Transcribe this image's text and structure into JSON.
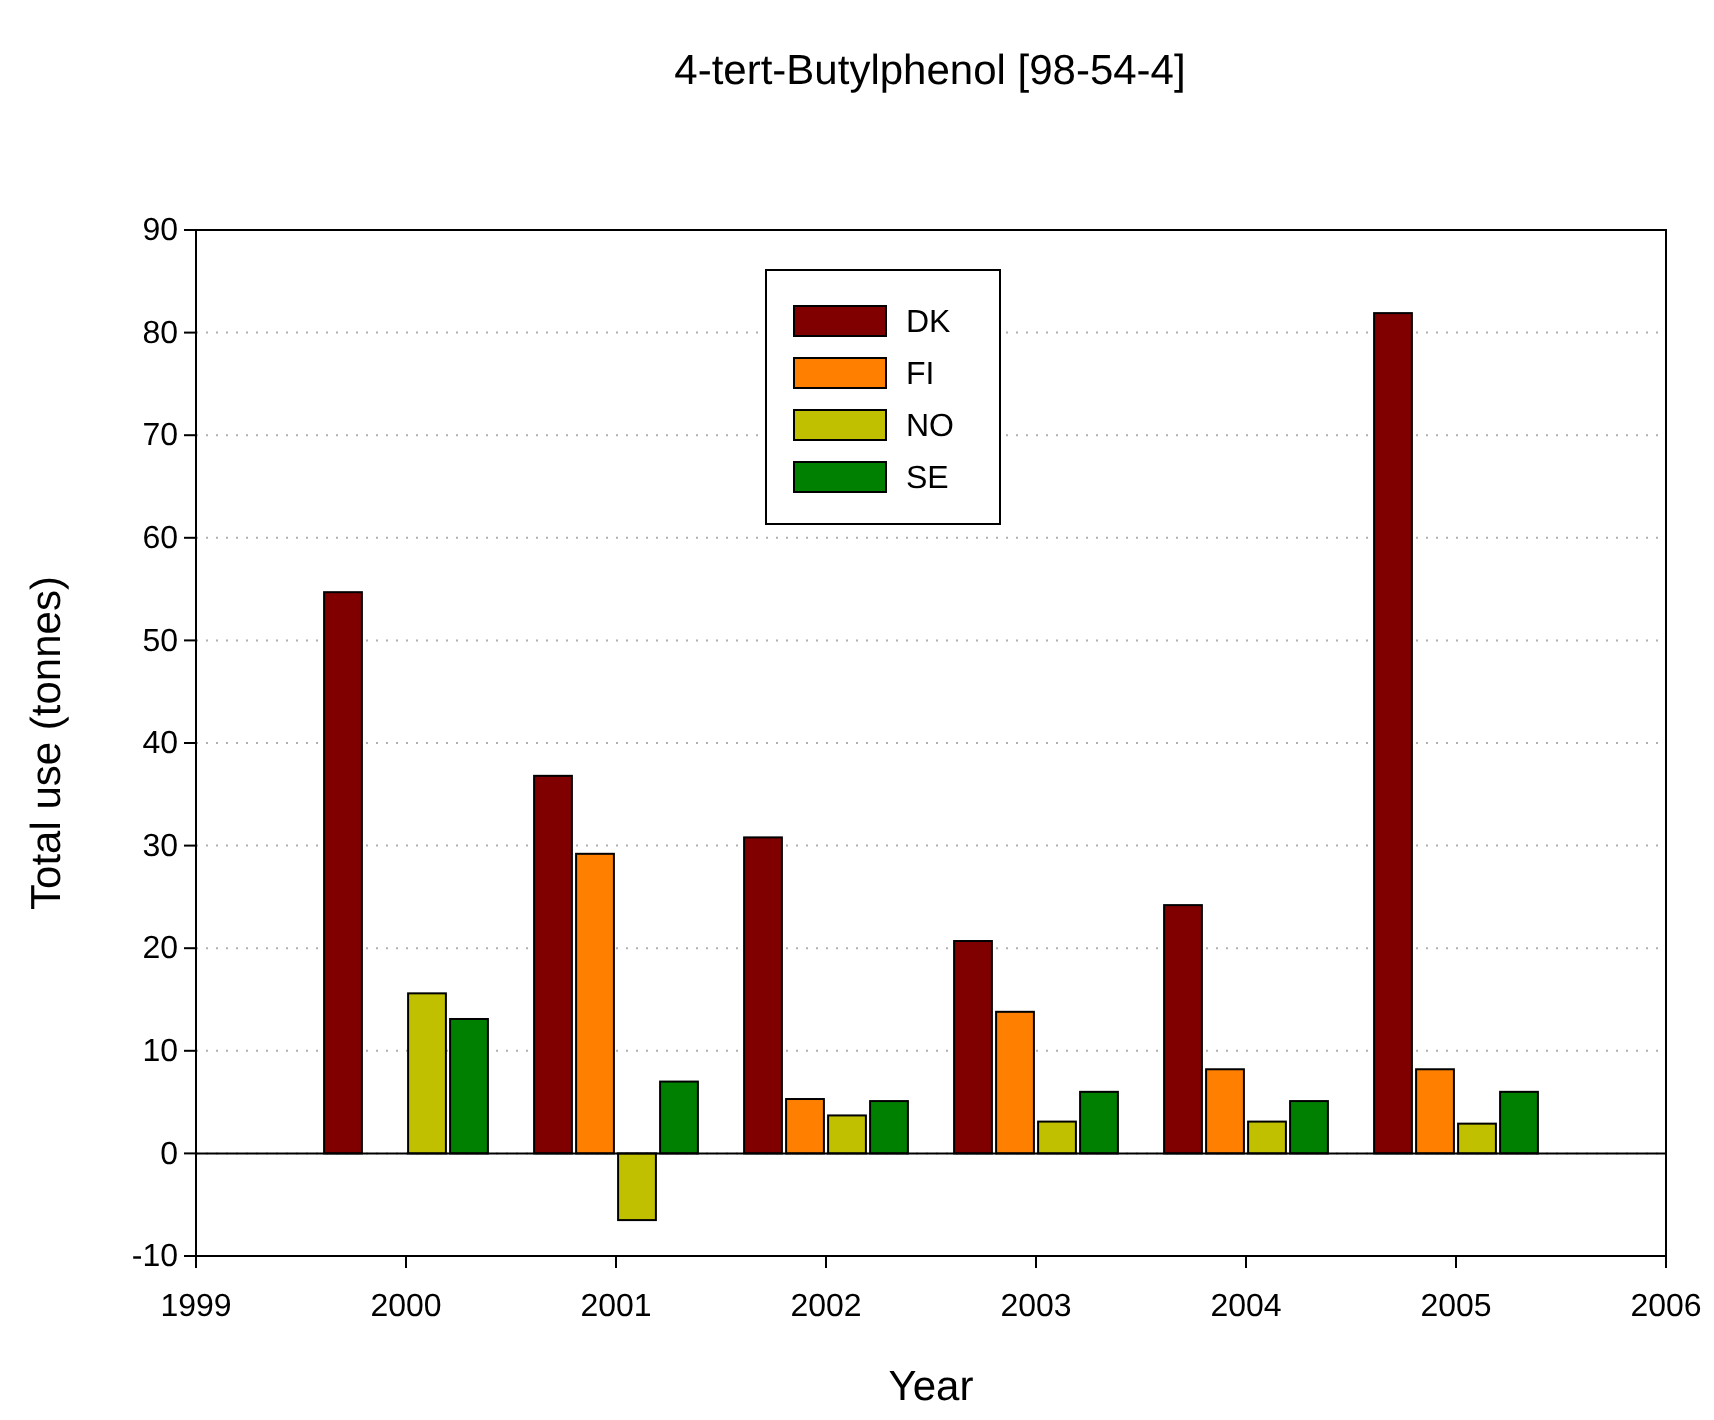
{
  "chart_data": {
    "type": "bar",
    "title": "4-tert-Butylphenol [98-54-4]",
    "xlabel": "Year",
    "ylabel": "Total use (tonnes)",
    "x": [
      2000,
      2001,
      2002,
      2003,
      2004,
      2005
    ],
    "series": [
      {
        "name": "DK",
        "color": "#800000",
        "values": [
          54.7,
          36.8,
          30.8,
          20.7,
          24.2,
          81.9
        ]
      },
      {
        "name": "FI",
        "color": "#ff8000",
        "values": [
          null,
          29.2,
          5.3,
          13.8,
          8.2,
          8.2
        ]
      },
      {
        "name": "NO",
        "color": "#c0c000",
        "values": [
          15.6,
          -6.5,
          3.7,
          3.1,
          3.1,
          2.9
        ]
      },
      {
        "name": "SE",
        "color": "#008000",
        "values": [
          13.1,
          7.0,
          5.1,
          6.0,
          5.1,
          6.0
        ]
      }
    ],
    "xlim": [
      1999,
      2006
    ],
    "xticks": [
      1999,
      2000,
      2001,
      2002,
      2003,
      2004,
      2005,
      2006
    ],
    "ylim": [
      -10,
      90
    ],
    "yticks": [
      -10,
      0,
      10,
      20,
      30,
      40,
      50,
      60,
      70,
      80,
      90
    ],
    "grid": "y",
    "legend": "top"
  }
}
